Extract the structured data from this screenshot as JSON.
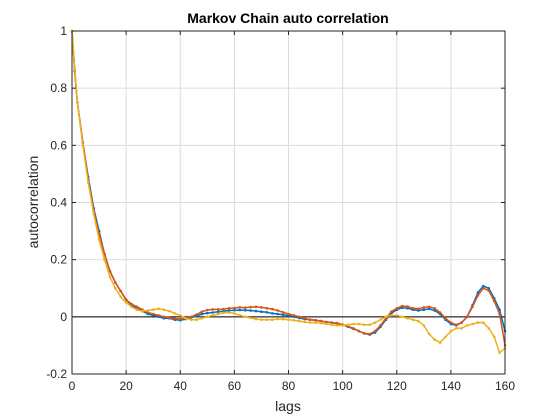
{
  "chart_data": {
    "type": "line",
    "title": "Markov Chain auto correlation",
    "xlabel": "lags",
    "ylabel": "autocorrelation",
    "xlim": [
      0,
      160
    ],
    "ylim": [
      -0.2,
      1
    ],
    "xticks": [
      0,
      20,
      40,
      60,
      80,
      100,
      120,
      140,
      160
    ],
    "yticks": [
      -0.2,
      0,
      0.2,
      0.4,
      0.6,
      0.8,
      1
    ],
    "xtick_labels": [
      "0",
      "20",
      "40",
      "60",
      "80",
      "100",
      "120",
      "140",
      "160"
    ],
    "ytick_labels": [
      "-0.2",
      "0",
      "0.2",
      "0.4",
      "0.6",
      "0.8",
      "1"
    ],
    "grid": true,
    "reference_line_y": 0,
    "series": [
      {
        "color": "#0072BD",
        "points": [
          [
            0,
            1
          ],
          [
            1,
            0.86
          ],
          [
            2,
            0.75
          ],
          [
            4,
            0.61
          ],
          [
            6,
            0.49
          ],
          [
            8,
            0.38
          ],
          [
            10,
            0.3
          ],
          [
            12,
            0.22
          ],
          [
            14,
            0.16
          ],
          [
            16,
            0.12
          ],
          [
            18,
            0.09
          ],
          [
            20,
            0.06
          ],
          [
            22,
            0.04
          ],
          [
            24,
            0.03
          ],
          [
            26,
            0.02
          ],
          [
            28,
            0.01
          ],
          [
            30,
            0.005
          ],
          [
            32,
            0.0
          ],
          [
            34,
            -0.005
          ],
          [
            36,
            -0.005
          ],
          [
            38,
            -0.01
          ],
          [
            40,
            -0.012
          ],
          [
            42,
            -0.008
          ],
          [
            44,
            -0.003
          ],
          [
            46,
            0.003
          ],
          [
            48,
            0.01
          ],
          [
            50,
            0.013
          ],
          [
            52,
            0.015
          ],
          [
            54,
            0.018
          ],
          [
            56,
            0.02
          ],
          [
            58,
            0.022
          ],
          [
            60,
            0.023
          ],
          [
            62,
            0.024
          ],
          [
            64,
            0.023
          ],
          [
            66,
            0.022
          ],
          [
            68,
            0.02
          ],
          [
            70,
            0.018
          ],
          [
            72,
            0.016
          ],
          [
            74,
            0.012
          ],
          [
            76,
            0.01
          ],
          [
            78,
            0.007
          ],
          [
            80,
            0.004
          ],
          [
            82,
            0.0
          ],
          [
            84,
            -0.004
          ],
          [
            86,
            -0.008
          ],
          [
            88,
            -0.01
          ],
          [
            90,
            -0.012
          ],
          [
            92,
            -0.015
          ],
          [
            94,
            -0.018
          ],
          [
            96,
            -0.02
          ],
          [
            98,
            -0.024
          ],
          [
            100,
            -0.028
          ],
          [
            102,
            -0.035
          ],
          [
            104,
            -0.042
          ],
          [
            106,
            -0.05
          ],
          [
            108,
            -0.058
          ],
          [
            110,
            -0.062
          ],
          [
            112,
            -0.055
          ],
          [
            114,
            -0.035
          ],
          [
            116,
            -0.01
          ],
          [
            118,
            0.012
          ],
          [
            120,
            0.025
          ],
          [
            122,
            0.032
          ],
          [
            124,
            0.03
          ],
          [
            126,
            0.025
          ],
          [
            128,
            0.022
          ],
          [
            130,
            0.025
          ],
          [
            132,
            0.028
          ],
          [
            134,
            0.022
          ],
          [
            136,
            0.01
          ],
          [
            138,
            -0.01
          ],
          [
            140,
            -0.025
          ],
          [
            142,
            -0.03
          ],
          [
            144,
            -0.02
          ],
          [
            146,
            0.0
          ],
          [
            148,
            0.04
          ],
          [
            150,
            0.085
          ],
          [
            152,
            0.108
          ],
          [
            154,
            0.1
          ],
          [
            156,
            0.065
          ],
          [
            158,
            0.025
          ],
          [
            160,
            -0.05
          ]
        ]
      },
      {
        "color": "#D95319",
        "points": [
          [
            0,
            1
          ],
          [
            1,
            0.86
          ],
          [
            2,
            0.75
          ],
          [
            4,
            0.61
          ],
          [
            6,
            0.48
          ],
          [
            8,
            0.37
          ],
          [
            10,
            0.29
          ],
          [
            12,
            0.22
          ],
          [
            14,
            0.16
          ],
          [
            16,
            0.12
          ],
          [
            18,
            0.09
          ],
          [
            20,
            0.06
          ],
          [
            22,
            0.045
          ],
          [
            24,
            0.035
          ],
          [
            26,
            0.025
          ],
          [
            28,
            0.015
          ],
          [
            30,
            0.01
          ],
          [
            32,
            0.005
          ],
          [
            34,
            0.0
          ],
          [
            36,
            -0.003
          ],
          [
            38,
            -0.006
          ],
          [
            40,
            -0.008
          ],
          [
            42,
            -0.005
          ],
          [
            44,
            0.0
          ],
          [
            46,
            0.008
          ],
          [
            48,
            0.018
          ],
          [
            50,
            0.024
          ],
          [
            52,
            0.026
          ],
          [
            54,
            0.026
          ],
          [
            56,
            0.027
          ],
          [
            58,
            0.03
          ],
          [
            60,
            0.031
          ],
          [
            62,
            0.033
          ],
          [
            64,
            0.032
          ],
          [
            66,
            0.034
          ],
          [
            68,
            0.035
          ],
          [
            70,
            0.033
          ],
          [
            72,
            0.03
          ],
          [
            74,
            0.027
          ],
          [
            76,
            0.022
          ],
          [
            78,
            0.016
          ],
          [
            80,
            0.01
          ],
          [
            82,
            0.005
          ],
          [
            84,
            0.0
          ],
          [
            86,
            -0.005
          ],
          [
            88,
            -0.01
          ],
          [
            90,
            -0.012
          ],
          [
            92,
            -0.015
          ],
          [
            94,
            -0.018
          ],
          [
            96,
            -0.02
          ],
          [
            98,
            -0.022
          ],
          [
            100,
            -0.027
          ],
          [
            102,
            -0.033
          ],
          [
            104,
            -0.04
          ],
          [
            106,
            -0.05
          ],
          [
            108,
            -0.058
          ],
          [
            110,
            -0.06
          ],
          [
            112,
            -0.05
          ],
          [
            114,
            -0.03
          ],
          [
            116,
            -0.005
          ],
          [
            118,
            0.018
          ],
          [
            120,
            0.03
          ],
          [
            122,
            0.038
          ],
          [
            124,
            0.036
          ],
          [
            126,
            0.03
          ],
          [
            128,
            0.028
          ],
          [
            130,
            0.033
          ],
          [
            132,
            0.035
          ],
          [
            134,
            0.03
          ],
          [
            136,
            0.015
          ],
          [
            138,
            -0.005
          ],
          [
            140,
            -0.02
          ],
          [
            142,
            -0.028
          ],
          [
            144,
            -0.02
          ],
          [
            146,
            0.0
          ],
          [
            148,
            0.035
          ],
          [
            150,
            0.075
          ],
          [
            152,
            0.1
          ],
          [
            154,
            0.092
          ],
          [
            156,
            0.055
          ],
          [
            158,
            0.01
          ],
          [
            160,
            -0.1
          ]
        ]
      },
      {
        "color": "#EDB120",
        "points": [
          [
            0,
            1
          ],
          [
            1,
            0.87
          ],
          [
            2,
            0.75
          ],
          [
            4,
            0.6
          ],
          [
            6,
            0.47
          ],
          [
            8,
            0.36
          ],
          [
            10,
            0.27
          ],
          [
            12,
            0.2
          ],
          [
            14,
            0.14
          ],
          [
            16,
            0.1
          ],
          [
            18,
            0.07
          ],
          [
            20,
            0.05
          ],
          [
            22,
            0.035
          ],
          [
            24,
            0.025
          ],
          [
            26,
            0.02
          ],
          [
            28,
            0.022
          ],
          [
            30,
            0.025
          ],
          [
            32,
            0.028
          ],
          [
            34,
            0.025
          ],
          [
            36,
            0.02
          ],
          [
            38,
            0.012
          ],
          [
            40,
            0.005
          ],
          [
            42,
            -0.005
          ],
          [
            44,
            -0.01
          ],
          [
            46,
            -0.01
          ],
          [
            48,
            -0.005
          ],
          [
            50,
            0.0
          ],
          [
            52,
            0.005
          ],
          [
            54,
            0.01
          ],
          [
            56,
            0.014
          ],
          [
            58,
            0.015
          ],
          [
            60,
            0.012
          ],
          [
            62,
            0.005
          ],
          [
            64,
            0.0
          ],
          [
            66,
            -0.004
          ],
          [
            68,
            -0.008
          ],
          [
            70,
            -0.01
          ],
          [
            72,
            -0.01
          ],
          [
            74,
            -0.01
          ],
          [
            76,
            -0.008
          ],
          [
            78,
            -0.008
          ],
          [
            80,
            -0.01
          ],
          [
            82,
            -0.012
          ],
          [
            84,
            -0.015
          ],
          [
            86,
            -0.018
          ],
          [
            88,
            -0.02
          ],
          [
            90,
            -0.02
          ],
          [
            92,
            -0.022
          ],
          [
            94,
            -0.025
          ],
          [
            96,
            -0.028
          ],
          [
            98,
            -0.03
          ],
          [
            100,
            -0.03
          ],
          [
            102,
            -0.028
          ],
          [
            104,
            -0.025
          ],
          [
            106,
            -0.025
          ],
          [
            108,
            -0.028
          ],
          [
            110,
            -0.028
          ],
          [
            112,
            -0.02
          ],
          [
            114,
            -0.01
          ],
          [
            116,
            0.0
          ],
          [
            118,
            0.005
          ],
          [
            120,
            0.005
          ],
          [
            122,
            0.0
          ],
          [
            124,
            -0.005
          ],
          [
            126,
            -0.01
          ],
          [
            128,
            -0.015
          ],
          [
            130,
            -0.03
          ],
          [
            132,
            -0.06
          ],
          [
            134,
            -0.08
          ],
          [
            136,
            -0.09
          ],
          [
            138,
            -0.07
          ],
          [
            140,
            -0.05
          ],
          [
            142,
            -0.04
          ],
          [
            144,
            -0.04
          ],
          [
            146,
            -0.03
          ],
          [
            148,
            -0.025
          ],
          [
            150,
            -0.02
          ],
          [
            152,
            -0.02
          ],
          [
            154,
            -0.04
          ],
          [
            156,
            -0.07
          ],
          [
            158,
            -0.125
          ],
          [
            160,
            -0.11
          ]
        ]
      }
    ]
  }
}
